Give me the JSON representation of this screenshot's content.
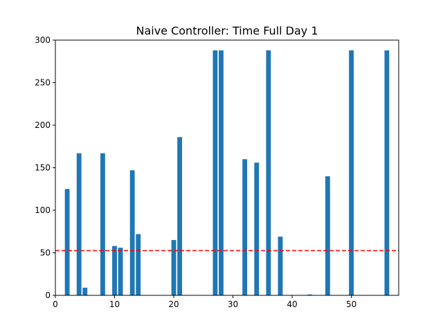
{
  "chart_data": {
    "type": "bar",
    "title": "Naive Controller: Time Full Day 1",
    "xlabel": "",
    "ylabel": "",
    "xlim": [
      0,
      58
    ],
    "ylim": [
      0,
      300
    ],
    "xticks": [
      0,
      10,
      20,
      30,
      40,
      50
    ],
    "yticks": [
      0,
      50,
      100,
      150,
      200,
      250,
      300
    ],
    "grid": false,
    "bar_color": "#1f77b4",
    "bar_width": 0.8,
    "x": [
      2,
      4,
      5,
      8,
      10,
      11,
      13,
      14,
      20,
      21,
      27,
      28,
      32,
      34,
      36,
      38,
      43,
      46,
      50,
      56
    ],
    "values": [
      125,
      167,
      9,
      167,
      58,
      56,
      147,
      72,
      65,
      186,
      288,
      288,
      160,
      156,
      288,
      69,
      1,
      140,
      288,
      288
    ],
    "reference_line": {
      "y": 52.5,
      "color": "#ff0000",
      "style": "dashed"
    }
  }
}
